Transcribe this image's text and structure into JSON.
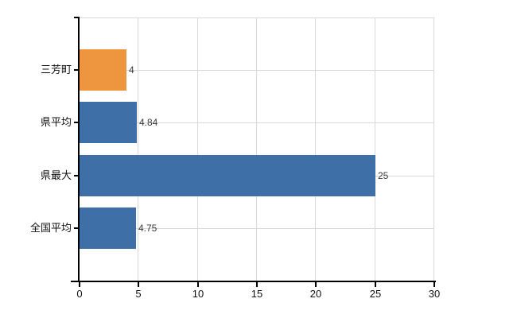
{
  "chart": {
    "background_color": "#ffffff",
    "gridline_color": "#d9d9d9",
    "axis_color": "#000000",
    "value_label_color": "#3a3a3a",
    "tick_label_color": "#111111"
  },
  "chart_data": {
    "type": "bar",
    "orientation": "horizontal",
    "title": "",
    "xlabel": "",
    "ylabel": "",
    "categories": [
      "三芳町",
      "県平均",
      "県最大",
      "全国平均"
    ],
    "values": [
      4,
      4.84,
      25,
      4.75
    ],
    "value_labels": [
      "4",
      "4.84",
      "25",
      "4.75"
    ],
    "bar_colors": [
      "#ee9540",
      "#3f6fa7",
      "#3f6fa7",
      "#3f6fa7"
    ],
    "highlight_color": "#ee9540",
    "default_color": "#3f6fa7",
    "xlim": [
      0,
      30
    ],
    "xticks": [
      0,
      5,
      10,
      15,
      20,
      25,
      30
    ],
    "grid": true,
    "legend": false
  }
}
